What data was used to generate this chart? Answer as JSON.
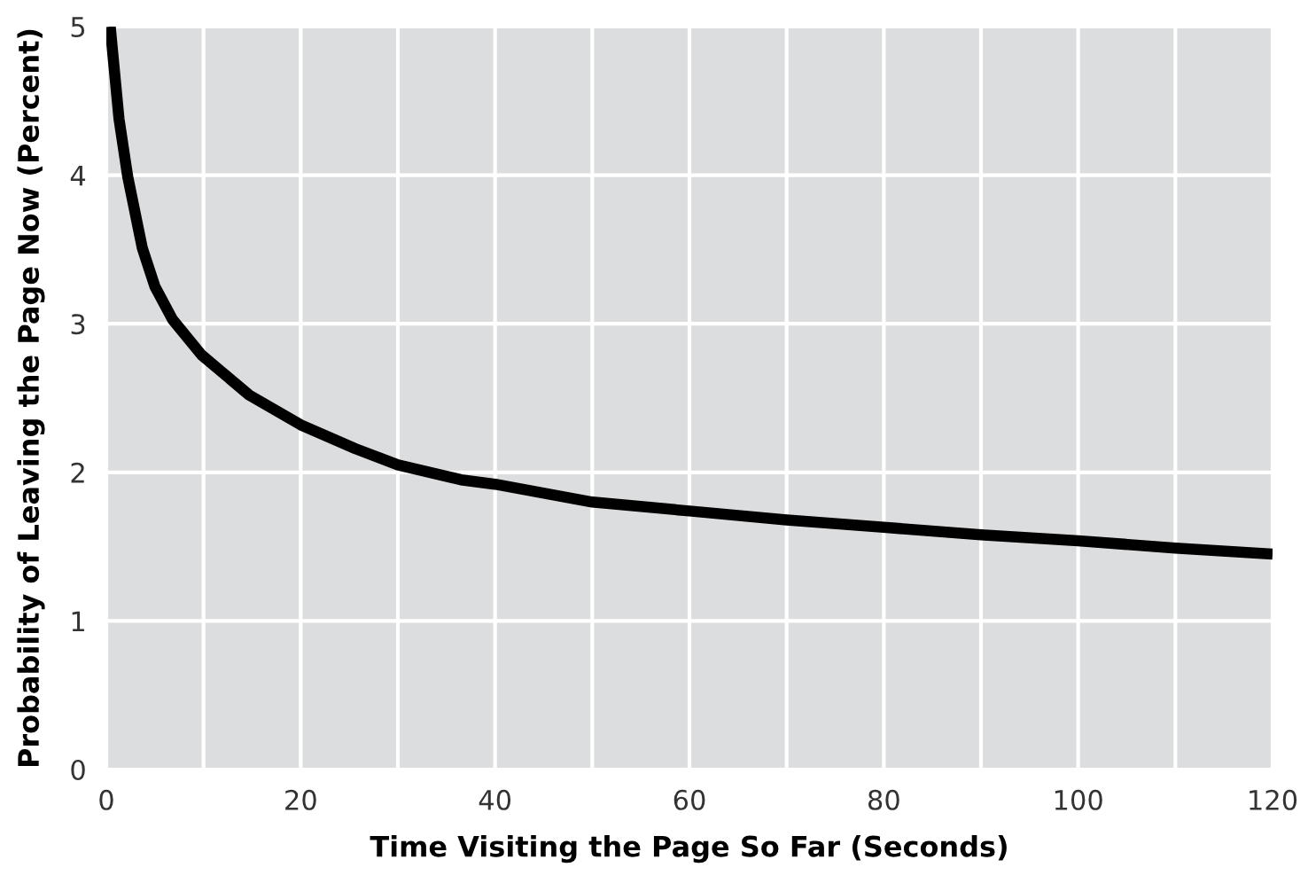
{
  "chart_data": {
    "type": "line",
    "xlabel": "Time Visiting the Page So Far (Seconds)",
    "ylabel": "Probability of Leaving the Page Now (Percent)",
    "series": [
      {
        "color": "#000000",
        "x": [
          0.4,
          1.3,
          2.2,
          3.7,
          5.0,
          6.8,
          9.8,
          14.7,
          20,
          25.6,
          30,
          36.5,
          40,
          50,
          60,
          70,
          80,
          90,
          100,
          110,
          120
        ],
        "values": [
          5.0,
          4.38,
          3.99,
          3.51,
          3.25,
          3.03,
          2.79,
          2.52,
          2.32,
          2.16,
          2.05,
          1.95,
          1.92,
          1.8,
          1.74,
          1.68,
          1.63,
          1.58,
          1.54,
          1.49,
          1.45
        ]
      }
    ],
    "xlim": [
      0,
      120
    ],
    "ylim": [
      0,
      5
    ],
    "xticks": [
      0,
      20,
      40,
      60,
      80,
      100,
      120
    ],
    "yticks": [
      0,
      1,
      2,
      3,
      4,
      5
    ],
    "grid": true,
    "marker": "none",
    "line_style": "solid"
  }
}
